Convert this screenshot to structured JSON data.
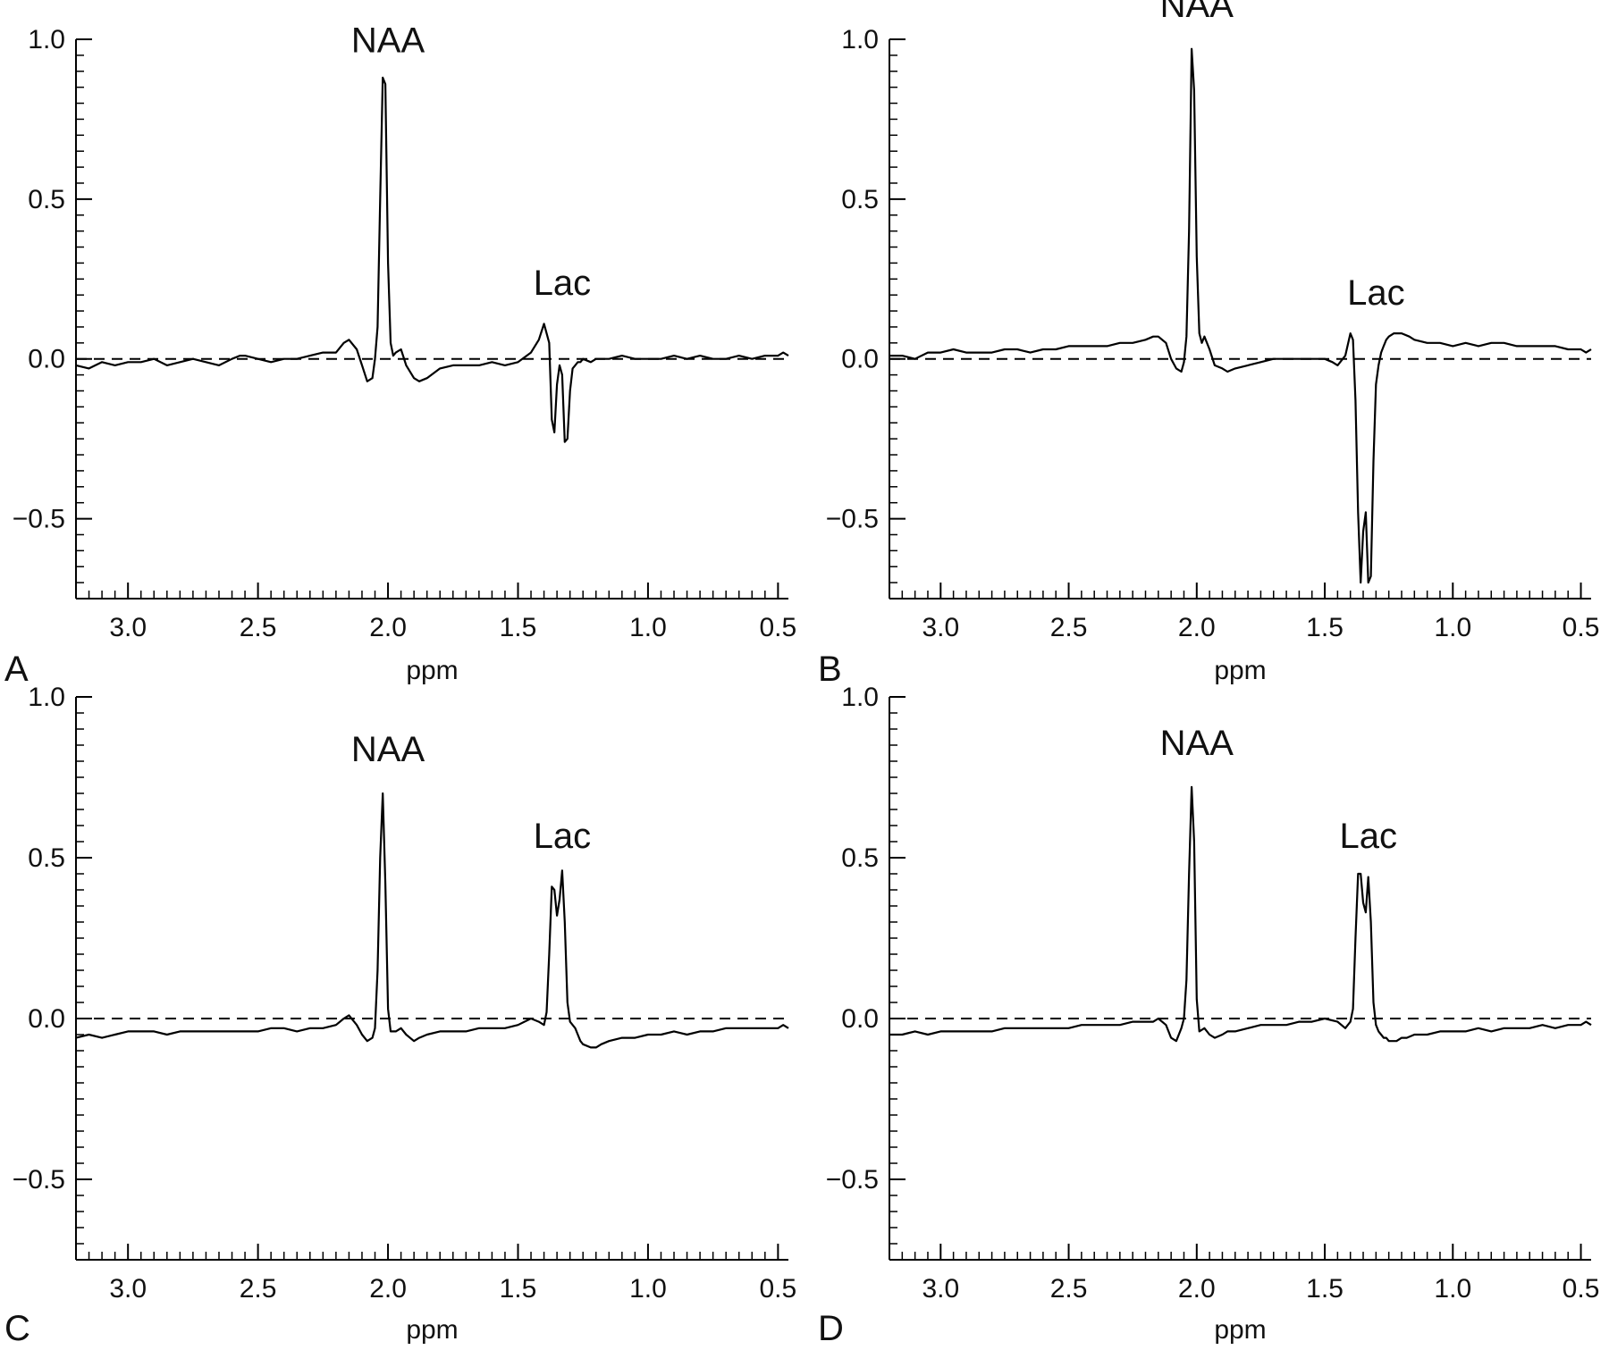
{
  "figure": {
    "line_color": "#000000",
    "background": "#ffffff"
  },
  "chart_data": [
    {
      "type": "line",
      "panel_label": "A",
      "xlabel": "ppm",
      "ylabel": "",
      "xlim": [
        3.2,
        0.46
      ],
      "ylim": [
        -0.75,
        1.0
      ],
      "x_reversed": true,
      "xticks": [
        3.0,
        2.5,
        2.0,
        1.5,
        1.0,
        0.5
      ],
      "xtick_labels": [
        "3.0",
        "2.5",
        "2.0",
        "1.5",
        "1.0",
        "0.5"
      ],
      "yticks": [
        1.0,
        0.5,
        0.0,
        -0.5
      ],
      "ytick_labels": [
        "1.0",
        "0.5",
        "0.0",
        "−0.5"
      ],
      "baseline": 0.0,
      "annotations": [
        {
          "text": "NAA",
          "x": 2.0,
          "y": 0.96
        },
        {
          "text": "Lac",
          "x": 1.33,
          "y": 0.2
        }
      ],
      "series": [
        {
          "x": [
            3.2,
            3.15,
            3.1,
            3.05,
            3.0,
            2.95,
            2.9,
            2.85,
            2.8,
            2.75,
            2.7,
            2.65,
            2.6,
            2.57,
            2.55,
            2.5,
            2.45,
            2.4,
            2.35,
            2.3,
            2.25,
            2.2,
            2.17,
            2.15,
            2.12,
            2.1,
            2.08,
            2.06,
            2.05,
            2.04,
            2.03,
            2.02,
            2.01,
            2.0,
            1.99,
            1.98,
            1.97,
            1.95,
            1.93,
            1.9,
            1.88,
            1.85,
            1.8,
            1.75,
            1.7,
            1.65,
            1.6,
            1.55,
            1.5,
            1.45,
            1.42,
            1.4,
            1.39,
            1.38,
            1.37,
            1.36,
            1.35,
            1.34,
            1.33,
            1.32,
            1.31,
            1.3,
            1.29,
            1.28,
            1.27,
            1.26,
            1.25,
            1.22,
            1.2,
            1.15,
            1.1,
            1.05,
            1.0,
            0.95,
            0.9,
            0.85,
            0.8,
            0.75,
            0.7,
            0.65,
            0.6,
            0.55,
            0.5,
            0.48,
            0.46
          ],
          "y": [
            -0.02,
            -0.03,
            -0.01,
            -0.02,
            -0.01,
            -0.01,
            0.0,
            -0.02,
            -0.01,
            0.0,
            -0.01,
            -0.02,
            0.0,
            0.01,
            0.01,
            0.0,
            -0.01,
            0.0,
            0.0,
            0.01,
            0.02,
            0.02,
            0.05,
            0.06,
            0.03,
            -0.02,
            -0.07,
            -0.06,
            0.0,
            0.1,
            0.5,
            0.88,
            0.86,
            0.3,
            0.05,
            0.01,
            0.02,
            0.03,
            -0.02,
            -0.06,
            -0.07,
            -0.06,
            -0.03,
            -0.02,
            -0.02,
            -0.02,
            -0.01,
            -0.02,
            -0.01,
            0.02,
            0.06,
            0.11,
            0.08,
            0.05,
            -0.19,
            -0.23,
            -0.08,
            -0.02,
            -0.05,
            -0.26,
            -0.25,
            -0.1,
            -0.03,
            -0.02,
            -0.01,
            -0.01,
            0.0,
            -0.01,
            0.0,
            0.0,
            0.01,
            0.0,
            0.0,
            0.0,
            0.01,
            0.0,
            0.01,
            0.0,
            0.0,
            0.01,
            0.0,
            0.01,
            0.01,
            0.02,
            0.01
          ]
        }
      ]
    },
    {
      "type": "line",
      "panel_label": "B",
      "xlabel": "ppm",
      "ylabel": "",
      "xlim": [
        3.2,
        0.46
      ],
      "ylim": [
        -0.75,
        1.0
      ],
      "x_reversed": true,
      "xticks": [
        3.0,
        2.5,
        2.0,
        1.5,
        1.0,
        0.5
      ],
      "xtick_labels": [
        "3.0",
        "2.5",
        "2.0",
        "1.5",
        "1.0",
        "0.5"
      ],
      "yticks": [
        1.0,
        0.5,
        0.0,
        -0.5
      ],
      "ytick_labels": [
        "1.0",
        "0.5",
        "0.0",
        "−0.5"
      ],
      "baseline": 0.0,
      "annotations": [
        {
          "text": "NAA",
          "x": 2.0,
          "y": 1.07
        },
        {
          "text": "Lac",
          "x": 1.3,
          "y": 0.17
        }
      ],
      "series": [
        {
          "x": [
            3.2,
            3.15,
            3.1,
            3.05,
            3.0,
            2.95,
            2.9,
            2.85,
            2.8,
            2.75,
            2.7,
            2.65,
            2.6,
            2.55,
            2.5,
            2.45,
            2.4,
            2.35,
            2.3,
            2.25,
            2.2,
            2.17,
            2.15,
            2.12,
            2.1,
            2.08,
            2.06,
            2.05,
            2.04,
            2.03,
            2.02,
            2.01,
            2.0,
            1.99,
            1.98,
            1.97,
            1.95,
            1.93,
            1.9,
            1.88,
            1.85,
            1.8,
            1.75,
            1.7,
            1.65,
            1.6,
            1.55,
            1.5,
            1.47,
            1.45,
            1.42,
            1.4,
            1.39,
            1.38,
            1.37,
            1.36,
            1.35,
            1.34,
            1.33,
            1.32,
            1.31,
            1.3,
            1.29,
            1.28,
            1.27,
            1.26,
            1.25,
            1.23,
            1.2,
            1.17,
            1.15,
            1.1,
            1.05,
            1.0,
            0.95,
            0.9,
            0.85,
            0.8,
            0.75,
            0.7,
            0.65,
            0.6,
            0.55,
            0.5,
            0.48,
            0.46
          ],
          "y": [
            0.01,
            0.01,
            0.0,
            0.02,
            0.02,
            0.03,
            0.02,
            0.02,
            0.02,
            0.03,
            0.03,
            0.02,
            0.03,
            0.03,
            0.04,
            0.04,
            0.04,
            0.04,
            0.05,
            0.05,
            0.06,
            0.07,
            0.07,
            0.05,
            0.0,
            -0.03,
            -0.04,
            -0.01,
            0.07,
            0.4,
            0.97,
            0.84,
            0.32,
            0.08,
            0.05,
            0.07,
            0.03,
            -0.02,
            -0.03,
            -0.04,
            -0.03,
            -0.02,
            -0.01,
            0.0,
            0.0,
            0.0,
            0.0,
            0.0,
            -0.01,
            -0.02,
            0.01,
            0.08,
            0.06,
            -0.13,
            -0.48,
            -0.7,
            -0.54,
            -0.48,
            -0.7,
            -0.68,
            -0.32,
            -0.08,
            -0.02,
            0.02,
            0.04,
            0.06,
            0.07,
            0.08,
            0.08,
            0.07,
            0.06,
            0.05,
            0.05,
            0.04,
            0.05,
            0.04,
            0.05,
            0.05,
            0.04,
            0.04,
            0.04,
            0.04,
            0.03,
            0.03,
            0.02,
            0.03
          ]
        }
      ]
    },
    {
      "type": "line",
      "panel_label": "C",
      "xlabel": "ppm",
      "ylabel": "",
      "xlim": [
        3.2,
        0.46
      ],
      "ylim": [
        -0.75,
        1.0
      ],
      "x_reversed": true,
      "xticks": [
        3.0,
        2.5,
        2.0,
        1.5,
        1.0,
        0.5
      ],
      "xtick_labels": [
        "3.0",
        "2.5",
        "2.0",
        "1.5",
        "1.0",
        "0.5"
      ],
      "yticks": [
        1.0,
        0.5,
        0.0,
        -0.5
      ],
      "ytick_labels": [
        "1.0",
        "0.5",
        "0.0",
        "−0.5"
      ],
      "baseline": 0.0,
      "annotations": [
        {
          "text": "NAA",
          "x": 2.0,
          "y": 0.8
        },
        {
          "text": "Lac",
          "x": 1.33,
          "y": 0.53
        }
      ],
      "series": [
        {
          "x": [
            3.2,
            3.15,
            3.1,
            3.05,
            3.0,
            2.95,
            2.9,
            2.85,
            2.8,
            2.75,
            2.7,
            2.65,
            2.6,
            2.55,
            2.5,
            2.45,
            2.4,
            2.35,
            2.3,
            2.25,
            2.2,
            2.17,
            2.15,
            2.12,
            2.1,
            2.08,
            2.06,
            2.05,
            2.04,
            2.03,
            2.02,
            2.01,
            2.0,
            1.99,
            1.97,
            1.95,
            1.93,
            1.9,
            1.88,
            1.85,
            1.8,
            1.75,
            1.7,
            1.65,
            1.6,
            1.55,
            1.5,
            1.45,
            1.42,
            1.4,
            1.39,
            1.38,
            1.37,
            1.36,
            1.35,
            1.34,
            1.33,
            1.32,
            1.31,
            1.3,
            1.29,
            1.28,
            1.27,
            1.26,
            1.25,
            1.22,
            1.2,
            1.18,
            1.15,
            1.1,
            1.05,
            1.0,
            0.95,
            0.9,
            0.85,
            0.8,
            0.75,
            0.7,
            0.65,
            0.6,
            0.55,
            0.5,
            0.48,
            0.46
          ],
          "y": [
            -0.06,
            -0.05,
            -0.06,
            -0.05,
            -0.04,
            -0.04,
            -0.04,
            -0.05,
            -0.04,
            -0.04,
            -0.04,
            -0.04,
            -0.04,
            -0.04,
            -0.04,
            -0.03,
            -0.03,
            -0.04,
            -0.03,
            -0.03,
            -0.02,
            0.0,
            0.01,
            -0.02,
            -0.05,
            -0.07,
            -0.06,
            -0.03,
            0.15,
            0.5,
            0.7,
            0.42,
            0.03,
            -0.04,
            -0.04,
            -0.03,
            -0.05,
            -0.07,
            -0.06,
            -0.05,
            -0.04,
            -0.04,
            -0.04,
            -0.03,
            -0.03,
            -0.03,
            -0.02,
            0.0,
            -0.01,
            -0.02,
            0.02,
            0.2,
            0.41,
            0.4,
            0.32,
            0.37,
            0.46,
            0.3,
            0.05,
            -0.01,
            -0.02,
            -0.03,
            -0.05,
            -0.07,
            -0.08,
            -0.09,
            -0.09,
            -0.08,
            -0.07,
            -0.06,
            -0.06,
            -0.05,
            -0.05,
            -0.04,
            -0.05,
            -0.04,
            -0.04,
            -0.03,
            -0.03,
            -0.03,
            -0.03,
            -0.03,
            -0.02,
            -0.03
          ]
        }
      ]
    },
    {
      "type": "line",
      "panel_label": "D",
      "xlabel": "ppm",
      "ylabel": "",
      "xlim": [
        3.2,
        0.46
      ],
      "ylim": [
        -0.75,
        1.0
      ],
      "x_reversed": true,
      "xticks": [
        3.0,
        2.5,
        2.0,
        1.5,
        1.0,
        0.5
      ],
      "xtick_labels": [
        "3.0",
        "2.5",
        "2.0",
        "1.5",
        "1.0",
        "0.5"
      ],
      "yticks": [
        1.0,
        0.5,
        0.0,
        -0.5
      ],
      "ytick_labels": [
        "1.0",
        "0.5",
        "0.0",
        "−0.5"
      ],
      "baseline": 0.0,
      "annotations": [
        {
          "text": "NAA",
          "x": 2.0,
          "y": 0.82
        },
        {
          "text": "Lac",
          "x": 1.33,
          "y": 0.53
        }
      ],
      "series": [
        {
          "x": [
            3.2,
            3.15,
            3.1,
            3.05,
            3.0,
            2.95,
            2.9,
            2.85,
            2.8,
            2.75,
            2.7,
            2.65,
            2.6,
            2.55,
            2.5,
            2.45,
            2.4,
            2.35,
            2.3,
            2.25,
            2.2,
            2.17,
            2.15,
            2.12,
            2.1,
            2.08,
            2.06,
            2.05,
            2.04,
            2.03,
            2.02,
            2.01,
            2.0,
            1.99,
            1.97,
            1.95,
            1.93,
            1.9,
            1.88,
            1.85,
            1.8,
            1.75,
            1.7,
            1.65,
            1.6,
            1.55,
            1.5,
            1.45,
            1.42,
            1.4,
            1.39,
            1.38,
            1.37,
            1.36,
            1.35,
            1.34,
            1.33,
            1.32,
            1.31,
            1.3,
            1.29,
            1.28,
            1.27,
            1.26,
            1.25,
            1.22,
            1.2,
            1.18,
            1.15,
            1.1,
            1.05,
            1.0,
            0.95,
            0.9,
            0.85,
            0.8,
            0.75,
            0.7,
            0.65,
            0.6,
            0.55,
            0.5,
            0.48,
            0.46
          ],
          "y": [
            -0.05,
            -0.05,
            -0.04,
            -0.05,
            -0.04,
            -0.04,
            -0.04,
            -0.04,
            -0.04,
            -0.03,
            -0.03,
            -0.03,
            -0.03,
            -0.03,
            -0.03,
            -0.02,
            -0.02,
            -0.02,
            -0.02,
            -0.01,
            -0.01,
            -0.01,
            0.0,
            -0.02,
            -0.06,
            -0.07,
            -0.03,
            0.0,
            0.12,
            0.45,
            0.72,
            0.55,
            0.06,
            -0.04,
            -0.03,
            -0.05,
            -0.06,
            -0.05,
            -0.04,
            -0.04,
            -0.03,
            -0.02,
            -0.02,
            -0.02,
            -0.01,
            -0.01,
            0.0,
            -0.01,
            -0.03,
            -0.01,
            0.03,
            0.25,
            0.45,
            0.45,
            0.36,
            0.33,
            0.44,
            0.3,
            0.05,
            -0.02,
            -0.04,
            -0.05,
            -0.06,
            -0.06,
            -0.07,
            -0.07,
            -0.06,
            -0.06,
            -0.05,
            -0.05,
            -0.04,
            -0.04,
            -0.04,
            -0.03,
            -0.04,
            -0.03,
            -0.03,
            -0.03,
            -0.02,
            -0.03,
            -0.02,
            -0.02,
            -0.01,
            -0.02
          ]
        }
      ]
    }
  ]
}
